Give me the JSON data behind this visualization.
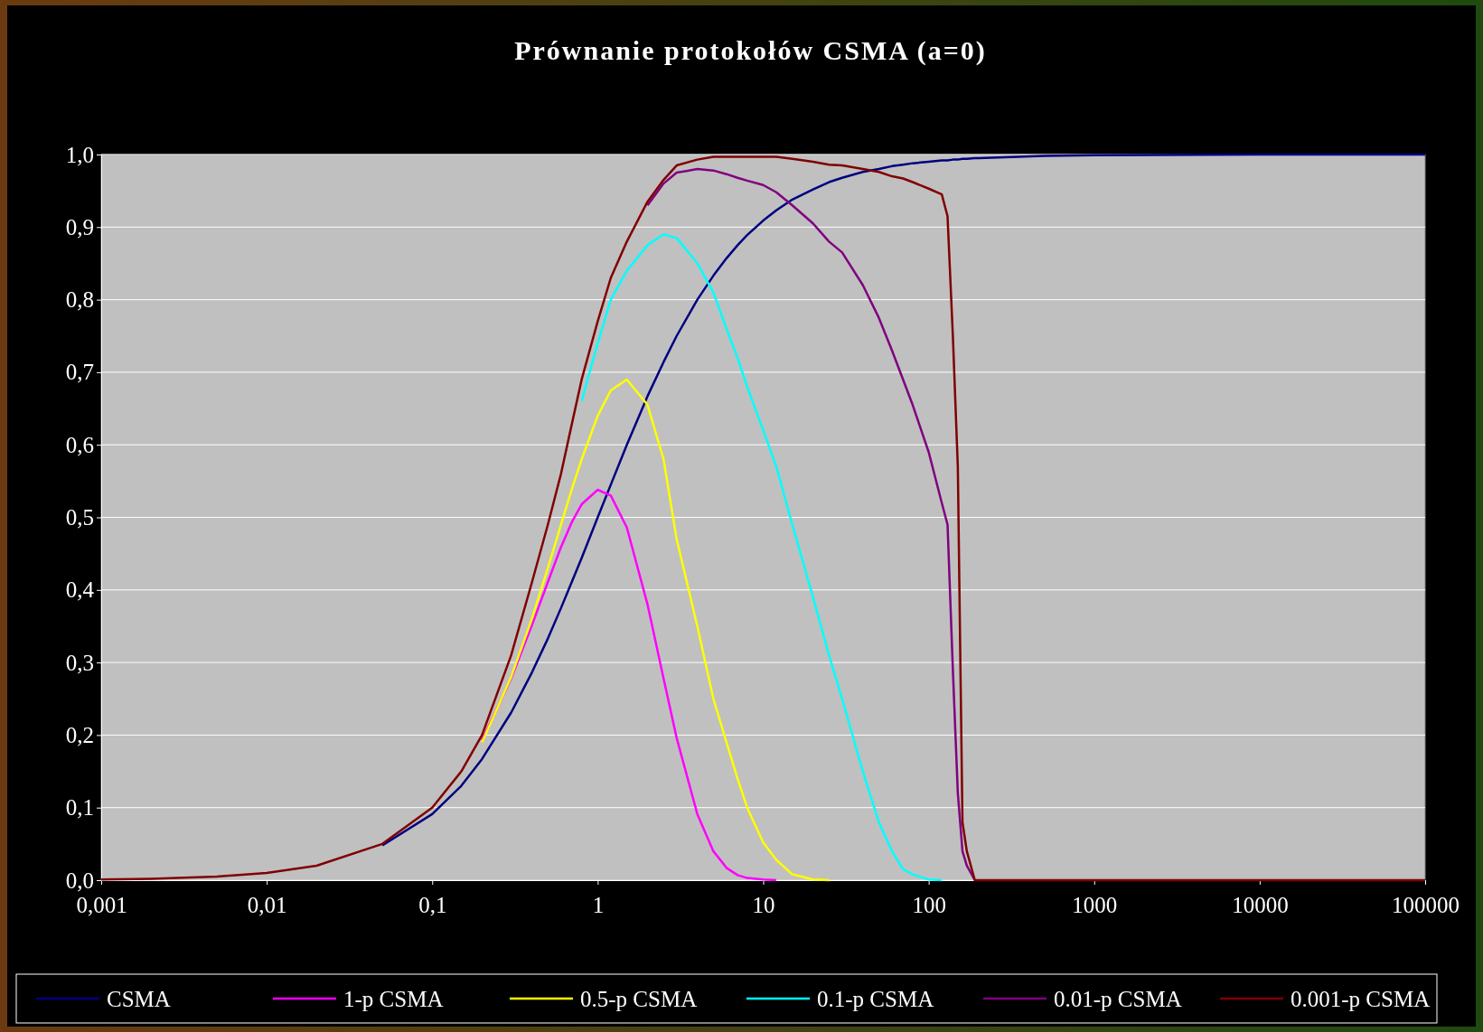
{
  "chart_data": {
    "type": "line",
    "title": "Prównanie protokołów CSMA (a=0)",
    "x": [
      0.001,
      0.002,
      0.005,
      0.01,
      0.02,
      0.05,
      0.1,
      0.15,
      0.2,
      0.3,
      0.4,
      0.5,
      0.6,
      0.7,
      0.8,
      1,
      1.2,
      1.5,
      2,
      2.5,
      3,
      4,
      5,
      6,
      7,
      8,
      10,
      12,
      15,
      20,
      25,
      30,
      40,
      50,
      60,
      70,
      80,
      100,
      120,
      130,
      140,
      150,
      160,
      170,
      190,
      200,
      500,
      1000,
      10000,
      100000
    ],
    "xlim": [
      0.001,
      100000
    ],
    "xticks": [
      {
        "value": 0.001,
        "label": "0,001"
      },
      {
        "value": 0.01,
        "label": "0,01"
      },
      {
        "value": 0.1,
        "label": "0,1"
      },
      1,
      10,
      100,
      1000,
      10000,
      100000
    ],
    "ylim": [
      0,
      1
    ],
    "yticks": [
      {
        "value": 0,
        "label": "0,0"
      },
      {
        "value": 0.1,
        "label": "0,1"
      },
      {
        "value": 0.2,
        "label": "0,2"
      },
      {
        "value": 0.3,
        "label": "0,3"
      },
      {
        "value": 0.4,
        "label": "0,4"
      },
      {
        "value": 0.5,
        "label": "0,5"
      },
      {
        "value": 0.6,
        "label": "0,6"
      },
      {
        "value": 0.7,
        "label": "0,7"
      },
      {
        "value": 0.8,
        "label": "0,8"
      },
      {
        "value": 0.9,
        "label": "0,9"
      },
      {
        "value": 1,
        "label": "1,0"
      }
    ],
    "log": "x",
    "grid": "y",
    "legend": "bottom",
    "series": [
      {
        "name": "CSMA",
        "color": "#000080",
        "values": [
          null,
          null,
          null,
          null,
          null,
          0.048,
          0.091,
          0.13,
          0.167,
          0.231,
          0.286,
          0.333,
          0.375,
          0.412,
          0.444,
          0.5,
          0.545,
          0.6,
          0.667,
          0.714,
          0.75,
          0.8,
          0.833,
          0.857,
          0.875,
          0.889,
          0.909,
          0.923,
          0.938,
          0.952,
          0.962,
          0.968,
          0.976,
          0.98,
          0.984,
          0.986,
          0.988,
          0.99,
          0.992,
          0.992,
          0.993,
          0.993,
          0.994,
          0.994,
          0.995,
          0.995,
          0.998,
          0.999,
          1,
          1
        ]
      },
      {
        "name": "1-p CSMA",
        "color": "#ff00ff",
        "values": [
          null,
          null,
          null,
          null,
          null,
          null,
          null,
          null,
          0.193,
          0.278,
          0.351,
          0.411,
          0.459,
          0.494,
          0.518,
          0.538,
          0.53,
          0.486,
          0.38,
          0.278,
          0.196,
          0.091,
          0.04,
          0.017,
          0.007,
          0.003,
          0.001,
          0,
          null,
          null,
          null,
          null,
          null,
          null,
          null,
          null,
          null,
          null,
          null,
          null,
          null,
          null,
          null,
          null,
          null,
          null,
          null,
          null,
          null,
          null
        ]
      },
      {
        "name": "0.5-p CSMA",
        "color": "#ffff00",
        "values": [
          null,
          null,
          null,
          null,
          null,
          null,
          null,
          null,
          0.19,
          0.28,
          0.36,
          0.43,
          0.49,
          0.54,
          0.58,
          0.64,
          0.675,
          0.69,
          0.655,
          0.58,
          0.47,
          0.35,
          0.25,
          0.19,
          0.14,
          0.1,
          0.052,
          0.028,
          0.008,
          0.001,
          0,
          null,
          null,
          null,
          null,
          null,
          null,
          null,
          null,
          null,
          null,
          null,
          null,
          null,
          null,
          null,
          null,
          null,
          null,
          null
        ]
      },
      {
        "name": "0.1-p CSMA",
        "color": "#00ffff",
        "values": [
          null,
          null,
          null,
          null,
          null,
          null,
          null,
          null,
          null,
          null,
          null,
          null,
          null,
          null,
          0.66,
          0.74,
          0.8,
          0.84,
          0.875,
          0.89,
          0.885,
          0.85,
          0.81,
          0.76,
          0.72,
          0.68,
          0.62,
          0.57,
          0.49,
          0.39,
          0.31,
          0.25,
          0.15,
          0.08,
          0.04,
          0.015,
          0.008,
          0.001,
          0,
          null,
          null,
          null,
          null,
          null,
          null,
          null,
          null,
          null,
          null,
          null
        ]
      },
      {
        "name": "0.01-p CSMA",
        "color": "#800080",
        "values": [
          null,
          null,
          null,
          null,
          null,
          null,
          null,
          null,
          null,
          null,
          null,
          null,
          null,
          null,
          null,
          null,
          null,
          null,
          0.93,
          0.96,
          0.975,
          0.98,
          0.978,
          0.973,
          0.968,
          0.964,
          0.958,
          0.948,
          0.93,
          0.905,
          0.88,
          0.865,
          0.82,
          0.775,
          0.73,
          0.69,
          0.655,
          0.59,
          0.52,
          0.49,
          0.29,
          0.12,
          0.04,
          0.02,
          0,
          null,
          null,
          null,
          null,
          null
        ]
      },
      {
        "name": "0.001-p CSMA",
        "color": "#800000",
        "values": [
          0.001,
          0.002,
          0.005,
          0.01,
          0.02,
          0.05,
          0.1,
          0.15,
          0.2,
          0.31,
          0.41,
          0.49,
          0.56,
          0.63,
          0.69,
          0.77,
          0.83,
          0.88,
          0.935,
          0.965,
          0.985,
          0.993,
          0.997,
          0.997,
          0.997,
          0.997,
          0.997,
          0.997,
          0.994,
          0.99,
          0.986,
          0.985,
          0.98,
          0.976,
          0.97,
          0.967,
          0.962,
          0.953,
          0.945,
          0.915,
          0.75,
          0.57,
          0.08,
          0.04,
          0,
          0,
          0,
          0,
          0,
          0
        ]
      }
    ]
  }
}
